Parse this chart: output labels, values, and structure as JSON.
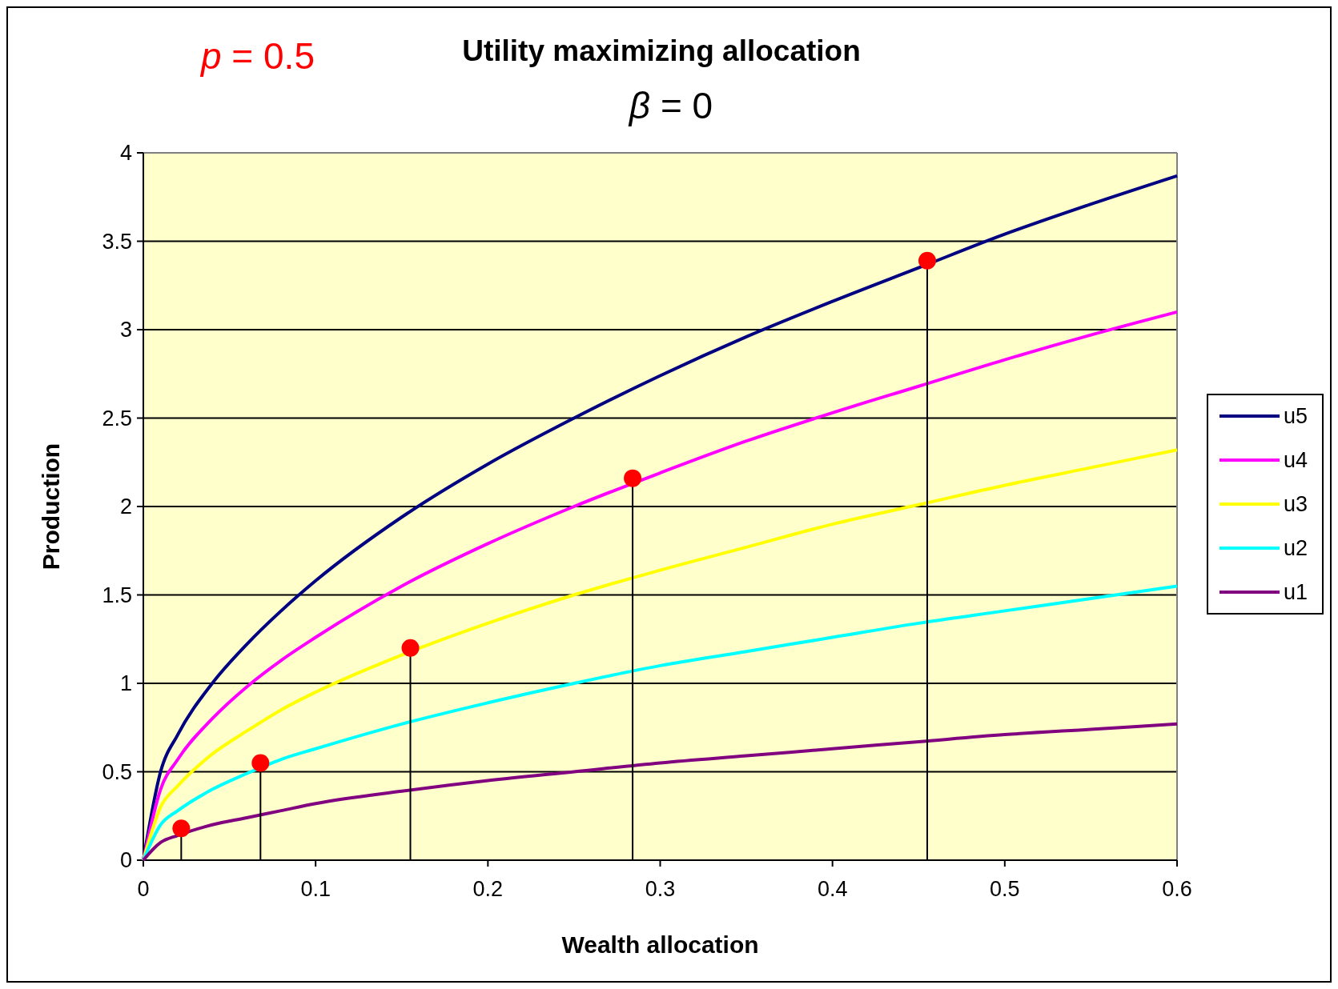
{
  "chart_data": {
    "type": "line",
    "title": "Utility maximizing allocation",
    "subtitle": "β = 0",
    "annotations": [
      "p = 0.5"
    ],
    "xlabel": "Wealth allocation",
    "ylabel": "Production",
    "xlim": [
      0,
      0.6
    ],
    "xticks": [
      0,
      0.1,
      0.2,
      0.3,
      0.4,
      0.5,
      0.6
    ],
    "ylim": [
      0,
      4
    ],
    "yticks": [
      0,
      0.5,
      1,
      1.5,
      2,
      2.5,
      3,
      3.5,
      4
    ],
    "grid": "y",
    "legend": "right",
    "marker": "none",
    "line_style": "solid",
    "x": [
      0,
      0.01,
      0.02,
      0.04,
      0.06,
      0.08,
      0.1,
      0.15,
      0.2,
      0.25,
      0.3,
      0.35,
      0.4,
      0.45,
      0.5,
      0.55,
      0.6
    ],
    "series": [
      {
        "name": "u5",
        "color": "#000080",
        "values": [
          0,
          0.5,
          0.71,
          1.0,
          1.22,
          1.41,
          1.58,
          1.94,
          2.24,
          2.5,
          2.74,
          2.96,
          3.16,
          3.35,
          3.54,
          3.71,
          3.87
        ]
      },
      {
        "name": "u4",
        "color": "#ff00ff",
        "values": [
          0,
          0.4,
          0.57,
          0.8,
          0.98,
          1.13,
          1.26,
          1.55,
          1.79,
          2.0,
          2.19,
          2.37,
          2.53,
          2.68,
          2.83,
          2.97,
          3.1
        ]
      },
      {
        "name": "u3",
        "color": "#ffff00",
        "values": [
          0,
          0.3,
          0.42,
          0.6,
          0.73,
          0.85,
          0.95,
          1.16,
          1.34,
          1.5,
          1.64,
          1.77,
          1.9,
          2.01,
          2.12,
          2.22,
          2.32
        ]
      },
      {
        "name": "u2",
        "color": "#00ffff",
        "values": [
          0,
          0.2,
          0.28,
          0.4,
          0.49,
          0.57,
          0.63,
          0.77,
          0.89,
          1.0,
          1.1,
          1.18,
          1.26,
          1.34,
          1.41,
          1.48,
          1.55
        ]
      },
      {
        "name": "u1",
        "color": "#800080",
        "values": [
          0,
          0.1,
          0.14,
          0.2,
          0.24,
          0.28,
          0.32,
          0.39,
          0.45,
          0.5,
          0.55,
          0.59,
          0.63,
          0.67,
          0.71,
          0.74,
          0.77
        ]
      },
      {
        "type": "scatter",
        "marker": "circle",
        "color": "#ff0000",
        "x": [
          0.022,
          0.068,
          0.155,
          0.284,
          0.455
        ],
        "values": [
          0.18,
          0.55,
          1.2,
          2.16,
          3.39
        ],
        "errors": [
          [
            0,
            0.18
          ],
          [
            0,
            0.55
          ],
          [
            0,
            1.2
          ],
          [
            0,
            2.16
          ],
          [
            0,
            3.39
          ]
        ]
      }
    ]
  }
}
